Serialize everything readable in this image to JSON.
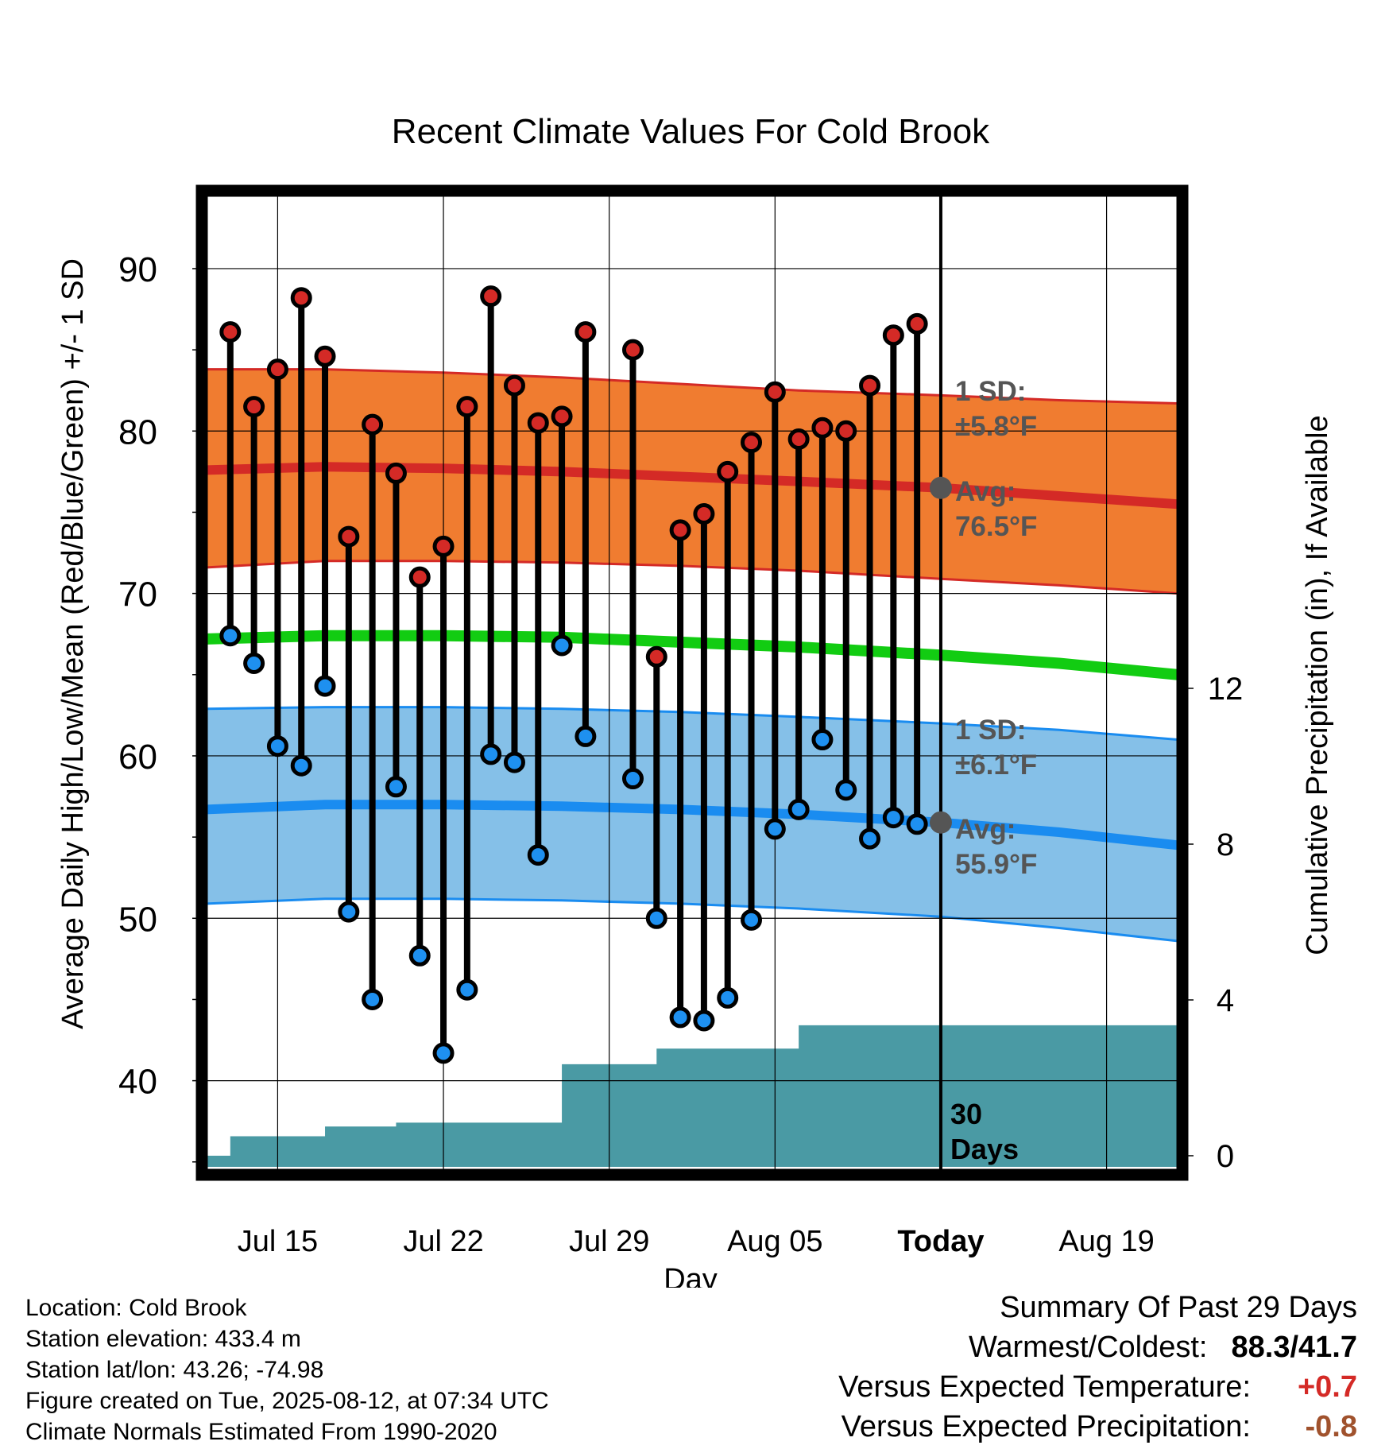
{
  "chart_data": {
    "type": "line",
    "title": "Recent Climate Values For Cold Brook",
    "xlabel": "Day",
    "ylabel": "Average Daily High/Low/Mean (Red/Blue/Green) +/- 1 SD",
    "y2label": "Cumulative Precipitation (in), If Available",
    "x_ticks": [
      "Jul 15",
      "Jul 22",
      "Jul 29",
      "Aug 05",
      "Today",
      "Aug 19"
    ],
    "y_ticks": [
      40,
      50,
      60,
      70,
      80,
      90
    ],
    "y2_ticks": [
      0,
      4,
      8,
      12
    ],
    "ylim": [
      34.5,
      94.5
    ],
    "y2lim": [
      0,
      24
    ],
    "xlim": [
      "2025-07-12",
      "2025-08-22"
    ],
    "today": "2025-08-12",
    "grid": true,
    "colors": {
      "high_band": "#f07c30",
      "high_band_edge": "#d42a26",
      "high_mean": "#d42a26",
      "low_band": "#85c0e8",
      "low_band_edge": "#1a8cf0",
      "low_mean": "#1a8cf0",
      "mean_line": "#12cc12",
      "precip": "#4a9aa4",
      "high_marker": "#d42a26",
      "low_marker": "#1e90f0",
      "annotation": "#555555"
    },
    "daily": {
      "dates": [
        "2025-07-13",
        "2025-07-14",
        "2025-07-15",
        "2025-07-16",
        "2025-07-17",
        "2025-07-18",
        "2025-07-19",
        "2025-07-20",
        "2025-07-21",
        "2025-07-22",
        "2025-07-23",
        "2025-07-24",
        "2025-07-25",
        "2025-07-26",
        "2025-07-27",
        "2025-07-28",
        "2025-07-30",
        "2025-07-31",
        "2025-08-01",
        "2025-08-02",
        "2025-08-03",
        "2025-08-04",
        "2025-08-05",
        "2025-08-06",
        "2025-08-07",
        "2025-08-08",
        "2025-08-09",
        "2025-08-10",
        "2025-08-11"
      ],
      "highs": [
        86.1,
        81.5,
        83.8,
        88.2,
        84.6,
        73.5,
        80.4,
        77.4,
        71.0,
        72.9,
        81.5,
        88.3,
        82.8,
        80.5,
        80.9,
        86.1,
        85.0,
        66.1,
        73.9,
        74.9,
        77.5,
        79.3,
        82.4,
        79.5,
        80.2,
        80.0,
        82.8,
        85.9,
        86.6
      ],
      "lows": [
        67.4,
        65.7,
        60.6,
        59.4,
        64.3,
        50.4,
        45.0,
        58.1,
        47.7,
        41.7,
        45.6,
        60.1,
        59.6,
        53.9,
        66.8,
        61.2,
        58.6,
        50.0,
        43.9,
        43.7,
        45.1,
        49.9,
        55.5,
        56.7,
        61.0,
        57.9,
        54.9,
        56.2,
        55.8
      ]
    },
    "normals": {
      "dates": [
        "2025-07-12",
        "2025-07-17",
        "2025-07-22",
        "2025-07-27",
        "2025-08-01",
        "2025-08-06",
        "2025-08-12",
        "2025-08-17",
        "2025-08-22"
      ],
      "high_avg": [
        77.6,
        77.8,
        77.7,
        77.5,
        77.2,
        76.9,
        76.5,
        76.0,
        75.5
      ],
      "high_upper": [
        83.8,
        83.8,
        83.6,
        83.3,
        82.9,
        82.5,
        82.2,
        81.9,
        81.7
      ],
      "high_lower": [
        71.6,
        72.0,
        72.0,
        71.9,
        71.7,
        71.4,
        70.9,
        70.5,
        70.0
      ],
      "low_avg": [
        56.7,
        57.0,
        57.0,
        56.9,
        56.7,
        56.4,
        55.9,
        55.3,
        54.5
      ],
      "low_upper": [
        62.9,
        63.0,
        63.0,
        62.9,
        62.7,
        62.4,
        62.0,
        61.6,
        61.0
      ],
      "low_lower": [
        50.9,
        51.2,
        51.2,
        51.1,
        50.9,
        50.6,
        50.1,
        49.4,
        48.6
      ],
      "mean": [
        67.2,
        67.4,
        67.4,
        67.3,
        67.0,
        66.7,
        66.2,
        65.7,
        65.0
      ]
    },
    "precip": {
      "dates": [
        "2025-07-12",
        "2025-07-13",
        "2025-07-14",
        "2025-07-15",
        "2025-07-16",
        "2025-07-17",
        "2025-07-18",
        "2025-07-19",
        "2025-07-20",
        "2025-07-21",
        "2025-07-22",
        "2025-07-23",
        "2025-07-24",
        "2025-07-25",
        "2025-07-26",
        "2025-07-27",
        "2025-07-28",
        "2025-07-29",
        "2025-07-30",
        "2025-07-31",
        "2025-08-01",
        "2025-08-02",
        "2025-08-03",
        "2025-08-04",
        "2025-08-05",
        "2025-08-06",
        "2025-08-07",
        "2025-08-08",
        "2025-08-09",
        "2025-08-10",
        "2025-08-11",
        "2025-08-22"
      ],
      "cumulative": [
        0.0,
        0.5,
        0.5,
        0.5,
        0.5,
        0.75,
        0.75,
        0.75,
        0.85,
        0.85,
        0.85,
        0.85,
        0.85,
        0.85,
        0.85,
        2.35,
        2.35,
        2.35,
        2.35,
        2.75,
        2.75,
        2.75,
        2.75,
        2.75,
        2.75,
        3.35,
        3.35,
        3.35,
        3.35,
        3.35,
        3.35,
        3.35
      ]
    },
    "annotations": {
      "high_sd_label": "1 SD:",
      "high_sd_value": "±5.8°F",
      "high_avg_label": "Avg:",
      "high_avg_value": "76.5°F",
      "low_sd_label": "1 SD:",
      "low_sd_value": "±6.1°F",
      "low_avg_label": "Avg:",
      "low_avg_value": "55.9°F",
      "days_number": "30",
      "days_label": "Days"
    }
  },
  "footer": {
    "location": "Location: Cold Brook",
    "elevation": "Station elevation: 433.4 m",
    "latlon": "Station lat/lon: 43.26; -74.98",
    "created": "Figure created on Tue, 2025-08-12, at 07:34 UTC",
    "normals": "Climate Normals Estimated From 1990-2020"
  },
  "summary": {
    "title": "Summary Of Past 29 Days",
    "warmest_coldest_label": "Warmest/Coldest:",
    "warmest": "88.3",
    "separator": "/",
    "coldest": "41.7",
    "temp_label": "Versus Expected Temperature:",
    "temp_value": "+0.7",
    "temp_color": "#d42a26",
    "precip_label": "Versus Expected Precipitation:",
    "precip_value": "-0.8",
    "precip_color": "#a0522d"
  }
}
